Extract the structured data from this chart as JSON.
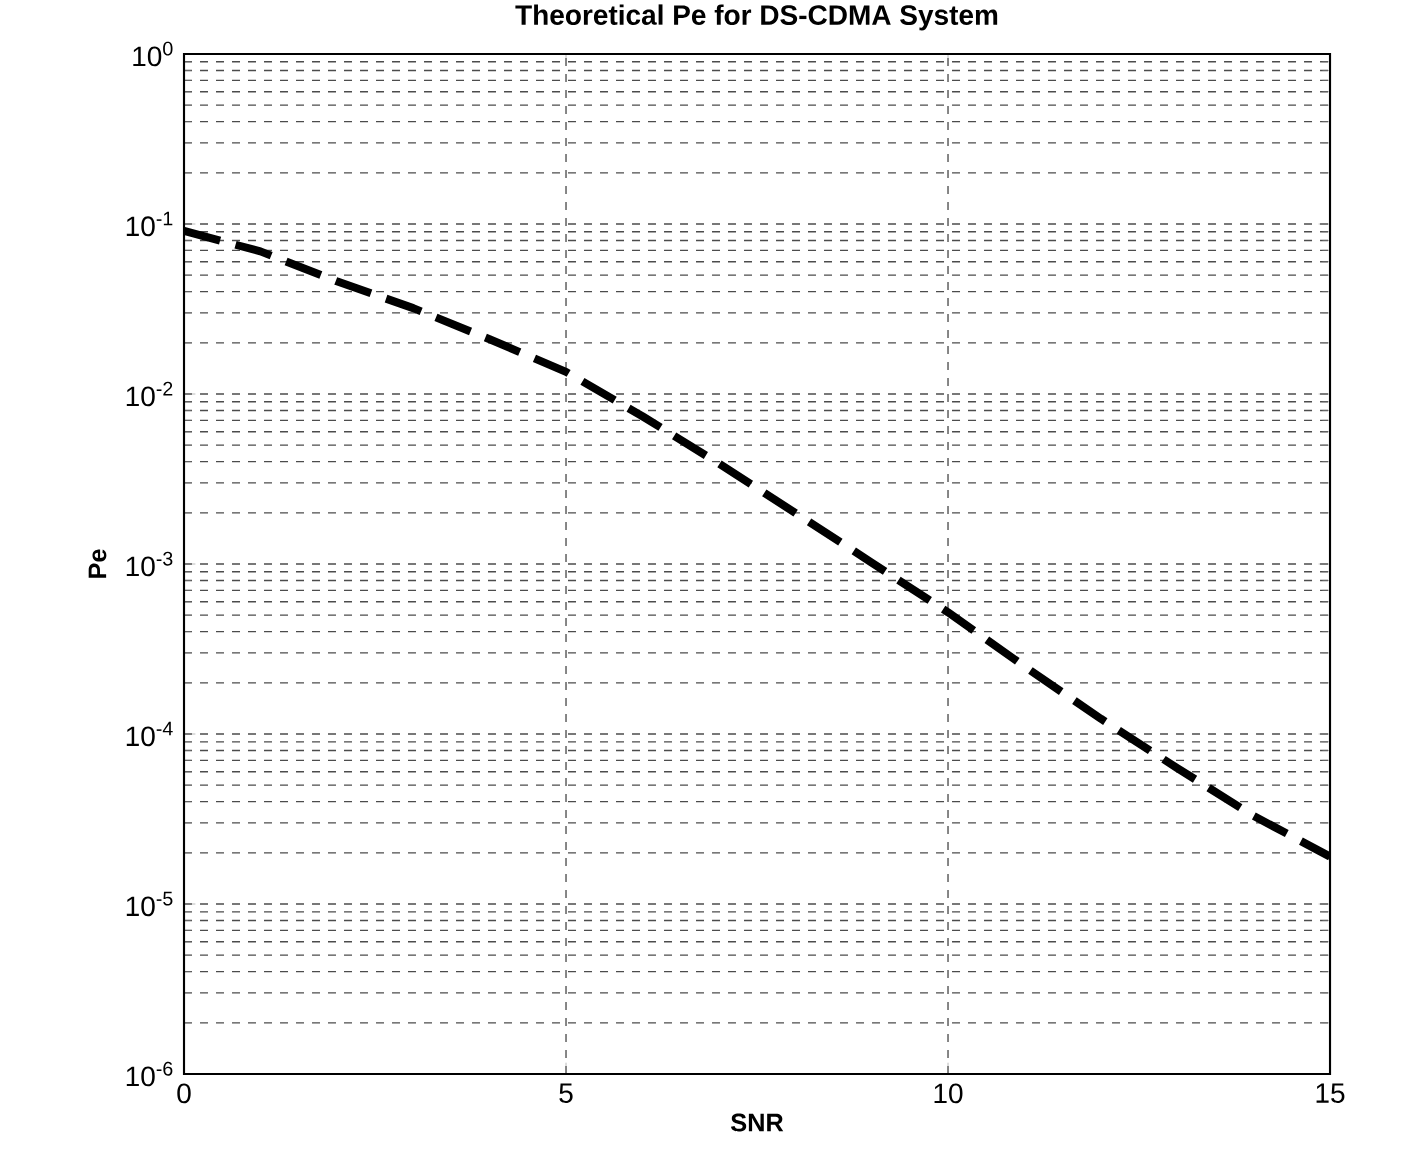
{
  "chart_data": {
    "type": "line",
    "title": "Theoretical Pe for DS-CDMA System",
    "xlabel": "SNR",
    "ylabel": "Pe",
    "x": [
      0,
      1,
      2,
      3,
      4,
      5,
      6,
      7,
      8,
      9,
      10,
      11,
      12,
      13,
      14,
      15
    ],
    "series": [
      {
        "color": "#000000",
        "values": [
          0.091,
          0.069,
          0.046,
          0.032,
          0.021,
          0.0135,
          0.0074,
          0.0039,
          0.002,
          0.00102,
          0.00052,
          0.00025,
          0.000123,
          6.3e-05,
          3.3e-05,
          1.9e-05
        ]
      }
    ],
    "log": "y",
    "xlim": [
      0,
      15
    ],
    "ylim": [
      1e-06,
      1
    ],
    "xticks": [
      0,
      5,
      10,
      15
    ],
    "yticks": [
      {
        "value": 1e-06,
        "label": "10$^{-6}$"
      },
      {
        "value": 1e-05,
        "label": "10$^{-5}$"
      },
      {
        "value": 0.0001,
        "label": "10$^{-4}$"
      },
      {
        "value": 0.001,
        "label": "10$^{-3}$"
      },
      {
        "value": 0.01,
        "label": "10$^{-2}$"
      },
      {
        "value": 0.1,
        "label": "10$^{-1}$"
      },
      {
        "value": 1,
        "label": "10$^{0}$"
      }
    ],
    "grid": true,
    "line_style": "dashed",
    "marker": "none"
  }
}
